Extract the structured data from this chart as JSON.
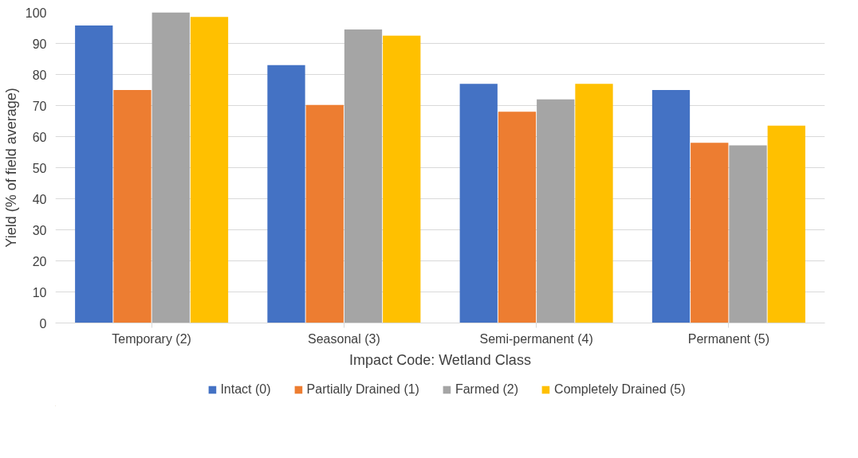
{
  "chart_data": {
    "type": "bar",
    "xlabel": "Impact Code: Wetland Class",
    "ylabel": "Yield (% of field average)",
    "categories": [
      "Temporary (2)",
      "Seasonal (3)",
      "Semi-permanent (4)",
      "Permanent (5)"
    ],
    "series": [
      {
        "name": "Intact (0)",
        "color": "#4472c4",
        "values": [
          95.8,
          83,
          77,
          75
        ]
      },
      {
        "name": "Partially Drained (1)",
        "color": "#ed7d31",
        "values": [
          75,
          70.2,
          68,
          58
        ]
      },
      {
        "name": "Farmed (2)",
        "color": "#a5a5a5",
        "values": [
          100,
          94.5,
          72,
          57.2
        ]
      },
      {
        "name": "Completely Drained (5)",
        "color": "#ffc000",
        "values": [
          98.5,
          92.5,
          77,
          63.5
        ]
      }
    ],
    "ylim": [
      0,
      100
    ],
    "yticks": [
      0,
      10,
      20,
      30,
      40,
      50,
      60,
      70,
      80,
      90,
      100
    ],
    "grid": "y",
    "legend": "bottom"
  }
}
